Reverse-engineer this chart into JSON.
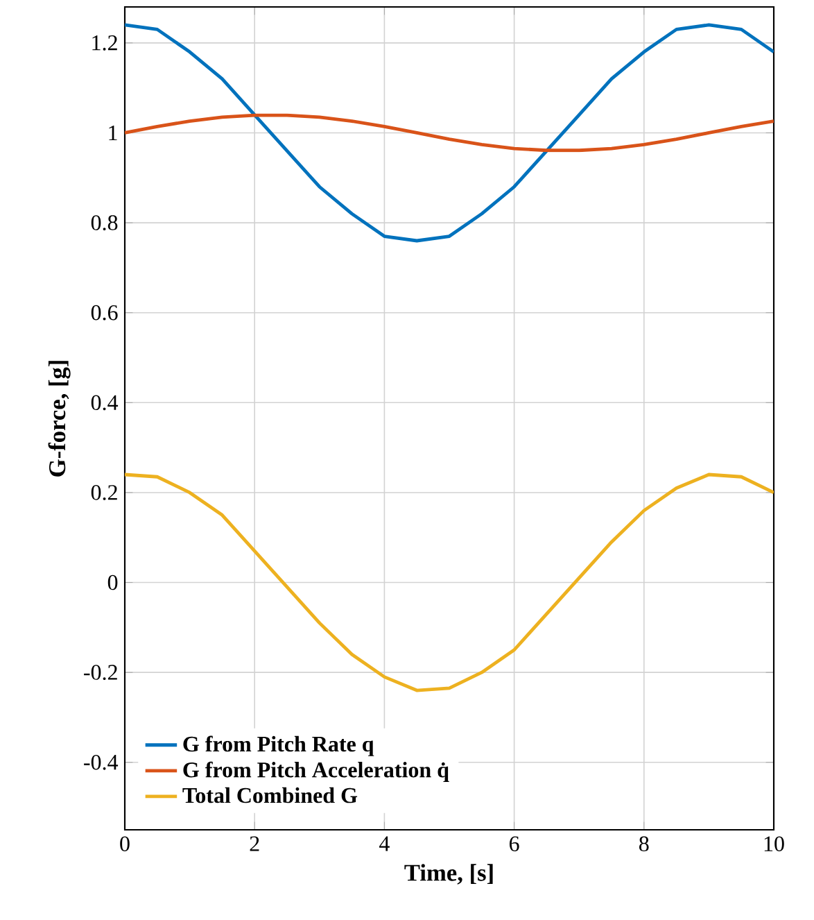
{
  "chart_data": {
    "type": "line",
    "xlabel": "Time, [s]",
    "ylabel": "G-force, [g]",
    "x": [
      0,
      0.5,
      1,
      1.5,
      2,
      2.5,
      3,
      3.5,
      4,
      4.5,
      5,
      5.5,
      6,
      6.5,
      7,
      7.5,
      8,
      8.5,
      9,
      9.5,
      10
    ],
    "series": [
      {
        "name": "G from Pitch Rate q",
        "color": "#0072bd",
        "values": [
          1.24,
          1.23,
          1.18,
          1.12,
          1.04,
          0.96,
          0.88,
          0.82,
          0.77,
          0.76,
          0.77,
          0.82,
          0.88,
          0.96,
          1.04,
          1.12,
          1.18,
          1.23,
          1.24,
          1.23,
          1.18
        ]
      },
      {
        "name": "G from Pitch Acceleration q̇",
        "color": "#d95319",
        "values": [
          1.0,
          1.014,
          1.026,
          1.035,
          1.039,
          1.039,
          1.035,
          1.026,
          1.014,
          1.0,
          0.986,
          0.974,
          0.965,
          0.961,
          0.961,
          0.965,
          0.974,
          0.986,
          1.0,
          1.014,
          1.026
        ]
      },
      {
        "name": "Total Combined G",
        "color": "#edb120",
        "values": [
          0.24,
          0.235,
          0.2,
          0.15,
          0.07,
          -0.01,
          -0.09,
          -0.16,
          -0.21,
          -0.24,
          -0.235,
          -0.2,
          -0.15,
          -0.07,
          0.01,
          0.09,
          0.16,
          0.21,
          0.24,
          0.235,
          0.2
        ]
      }
    ],
    "xlim": [
      0,
      10
    ],
    "ylim": [
      -0.55,
      1.28
    ],
    "xticks": [
      0,
      2,
      4,
      6,
      8,
      10
    ],
    "yticks": [
      -0.4,
      -0.2,
      0,
      0.2,
      0.4,
      0.6,
      0.8,
      1,
      1.2
    ],
    "grid": true,
    "legend": "bottom left",
    "marker": "none",
    "line_style": "solid"
  }
}
